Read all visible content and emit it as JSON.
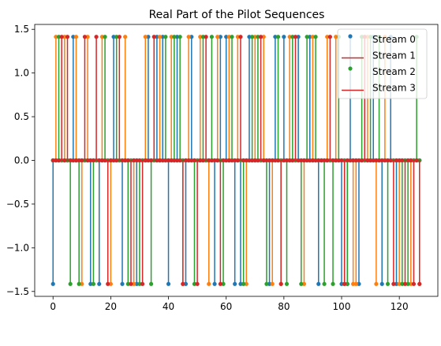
{
  "chart_data": {
    "type": "stem",
    "title": "Real Part of the Pilot Sequences",
    "xlabel": "",
    "ylabel": "",
    "xlim": [
      -6.35,
      133.35
    ],
    "ylim": [
      -1.556,
      1.556
    ],
    "x_ticks": [
      0,
      20,
      40,
      60,
      80,
      100,
      120
    ],
    "y_ticks": [
      -1.5,
      -1.0,
      -0.5,
      0.0,
      0.5,
      1.0,
      1.5
    ],
    "x_tick_labels": [
      "0",
      "20",
      "40",
      "60",
      "80",
      "100",
      "120"
    ],
    "y_tick_labels": [
      "−1.5",
      "−1.0",
      "−0.5",
      "0.0",
      "0.5",
      "1.0",
      "1.5"
    ],
    "legend_position": "top-right",
    "grid": false,
    "n_points": 128,
    "amplitude": 1.4142,
    "baseline_color": "#d62728",
    "series": [
      {
        "name": "Stream 0",
        "color": "#1f77b4",
        "x": [
          0,
          7,
          13,
          16,
          21,
          24,
          29,
          33,
          36,
          38,
          40,
          43,
          46,
          48,
          56,
          58,
          60,
          63,
          65,
          68,
          75,
          77,
          80,
          85,
          89,
          92,
          100,
          102,
          103,
          106,
          111,
          114,
          117,
          119
        ],
        "values": [
          -1.4142,
          1.4142,
          -1.4142,
          -1.4142,
          1.4142,
          -1.4142,
          -1.4142,
          1.4142,
          1.4142,
          1.4142,
          -1.4142,
          1.4142,
          -1.4142,
          1.4142,
          -1.4142,
          1.4142,
          1.4142,
          -1.4142,
          -1.4142,
          1.4142,
          -1.4142,
          1.4142,
          1.4142,
          1.4142,
          1.4142,
          -1.4142,
          -1.4142,
          -1.4142,
          1.4142,
          -1.4142,
          1.4142,
          -1.4142,
          1.4142,
          -1.4142
        ]
      },
      {
        "name": "Stream 1",
        "color": "#ff7f0e",
        "x": [
          1,
          4,
          8,
          10,
          12,
          17,
          20,
          25,
          28,
          32,
          37,
          41,
          45,
          47,
          51,
          54,
          57,
          61,
          64,
          67,
          70,
          73,
          76,
          79,
          82,
          87,
          90,
          95,
          98,
          101,
          104,
          105,
          109,
          112,
          115,
          120,
          124,
          127
        ],
        "values": [
          1.4142,
          1.4142,
          1.4142,
          -1.4142,
          1.4142,
          1.4142,
          -1.4142,
          1.4142,
          -1.4142,
          1.4142,
          1.4142,
          1.4142,
          -1.4142,
          1.4142,
          1.4142,
          -1.4142,
          1.4142,
          1.4142,
          1.4142,
          -1.4142,
          1.4142,
          1.4142,
          -1.4142,
          -1.4142,
          1.4142,
          -1.4142,
          1.4142,
          1.4142,
          1.4142,
          -1.4142,
          -1.4142,
          -1.4142,
          1.4142,
          -1.4142,
          1.4142,
          -1.4142,
          -1.4142,
          -1.4142
        ]
      },
      {
        "name": "Stream 2",
        "color": "#2ca02c",
        "x": [
          2,
          6,
          9,
          14,
          18,
          22,
          26,
          30,
          34,
          39,
          42,
          44,
          49,
          52,
          55,
          59,
          62,
          66,
          69,
          71,
          74,
          78,
          81,
          83,
          86,
          88,
          91,
          94,
          97,
          99,
          102,
          107,
          110,
          113,
          116,
          121,
          123,
          126
        ],
        "values": [
          1.4142,
          -1.4142,
          -1.4142,
          -1.4142,
          1.4142,
          1.4142,
          -1.4142,
          -1.4142,
          -1.4142,
          1.4142,
          1.4142,
          1.4142,
          -1.4142,
          1.4142,
          1.4142,
          -1.4142,
          1.4142,
          -1.4142,
          1.4142,
          1.4142,
          -1.4142,
          1.4142,
          -1.4142,
          1.4142,
          -1.4142,
          1.4142,
          1.4142,
          -1.4142,
          -1.4142,
          1.4142,
          -1.4142,
          1.4142,
          1.4142,
          1.4142,
          -1.4142,
          -1.4142,
          -1.4142,
          1.4142
        ]
      },
      {
        "name": "Stream 3",
        "color": "#d62728",
        "x": [
          3,
          5,
          11,
          15,
          19,
          23,
          27,
          31,
          35,
          45,
          50,
          53,
          58,
          65,
          72,
          79,
          84,
          96,
          101,
          108,
          118,
          122,
          125,
          127
        ],
        "values": [
          1.4142,
          1.4142,
          1.4142,
          1.4142,
          -1.4142,
          1.4142,
          -1.4142,
          -1.4142,
          1.4142,
          -1.4142,
          -1.4142,
          1.4142,
          -1.4142,
          1.4142,
          1.4142,
          -1.4142,
          1.4142,
          1.4142,
          -1.4142,
          1.4142,
          -1.4142,
          -1.4142,
          -1.4142,
          -1.4142
        ]
      }
    ]
  }
}
